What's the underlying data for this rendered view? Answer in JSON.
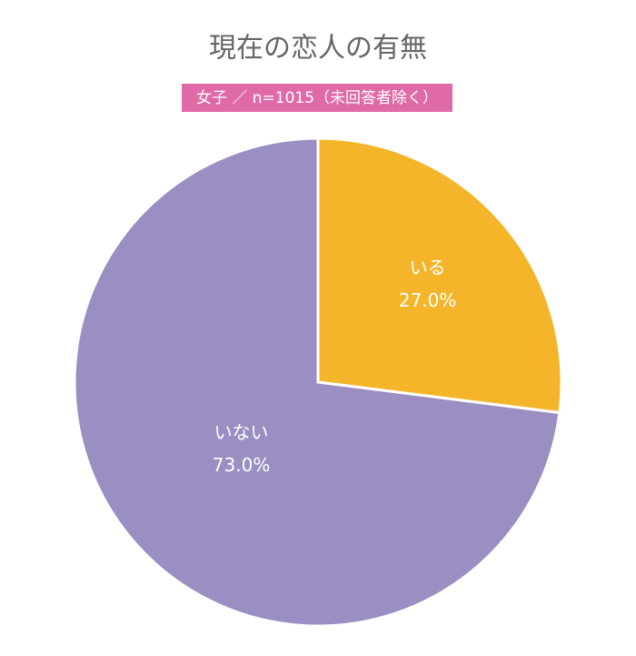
{
  "chart_data": {
    "type": "pie",
    "title": "現在の恋人の有無",
    "subtitle": "女子 ／ n=1015（未回答者除く）",
    "categories": [
      "いる",
      "いない"
    ],
    "values": [
      27.0,
      73.0
    ],
    "value_labels": [
      "27.0%",
      "73.0%"
    ],
    "colors": [
      "#F5B52A",
      "#9B8EC3"
    ]
  }
}
